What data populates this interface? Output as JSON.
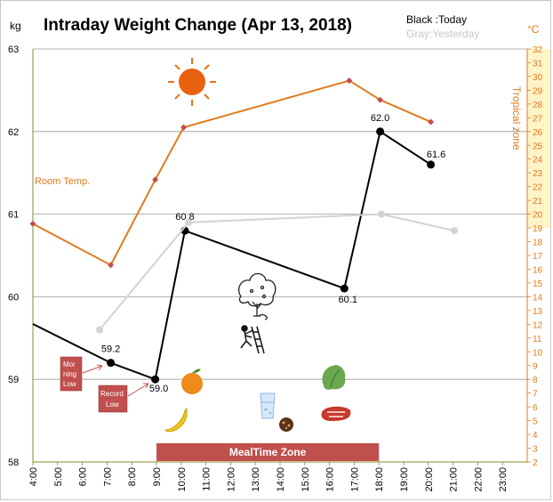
{
  "chart_data": {
    "type": "line",
    "title": "Intraday Weight Change (Apr 13, 2018)",
    "y_unit": "kg",
    "y2_unit": "°C",
    "legend": {
      "today": "Black :Today",
      "yesterday": "Gray:Yesterday"
    },
    "x_ticks": [
      "4:00",
      "5:00",
      "6:00",
      "7:00",
      "8:00",
      "9:00",
      "10:00",
      "11:00",
      "12:00",
      "13:00",
      "14:00",
      "15:00",
      "16:00",
      "17:00",
      "18:00",
      "19:00",
      "20:00",
      "21:00",
      "22:00",
      "23:00"
    ],
    "y_ticks": [
      "58",
      "59",
      "60",
      "61",
      "62",
      "63"
    ],
    "y2_ticks": [
      "2",
      "3",
      "4",
      "5",
      "6",
      "7",
      "8",
      "9",
      "10",
      "11",
      "12",
      "13",
      "14",
      "15",
      "16",
      "17",
      "18",
      "19",
      "20",
      "21",
      "22",
      "23",
      "24",
      "25",
      "26",
      "27",
      "28",
      "29",
      "30",
      "31",
      "32"
    ],
    "xlim": [
      4,
      24
    ],
    "ylim": [
      58,
      63
    ],
    "y2lim": [
      2,
      32
    ],
    "series": [
      {
        "key": "today",
        "color": "#000000",
        "points": [
          [
            4.0,
            59.67
          ],
          [
            7.15,
            59.2
          ],
          [
            8.95,
            59.0
          ],
          [
            10.15,
            60.8
          ],
          [
            16.6,
            60.1
          ],
          [
            18.05,
            62.0
          ],
          [
            20.1,
            61.6
          ]
        ],
        "labels": [
          null,
          "59.2",
          "59.0",
          "60.8",
          "60.1",
          "62.0",
          "61.6"
        ]
      },
      {
        "key": "yesterday",
        "color": "#d3d3d3",
        "points": [
          [
            6.7,
            59.6
          ],
          [
            10.3,
            60.9
          ],
          [
            18.1,
            61.0
          ],
          [
            21.05,
            60.8
          ]
        ]
      },
      {
        "key": "temp",
        "name": "Room Temp.",
        "color": "#e07b1f",
        "axis": "right",
        "points": [
          [
            4.0,
            19.3
          ],
          [
            7.15,
            16.3
          ],
          [
            8.95,
            22.5
          ],
          [
            10.1,
            26.3
          ],
          [
            16.8,
            29.7
          ],
          [
            18.05,
            28.3
          ],
          [
            20.1,
            26.7
          ]
        ]
      }
    ],
    "annotations": {
      "tropical_zone": "Tropical zone",
      "tropical_range": [
        19,
        32
      ],
      "meal_zone": "MealTime Zone",
      "meal_range": [
        9.0,
        18.0
      ],
      "morning_low": "Mor ning Low",
      "record_low": "Record Low"
    }
  },
  "colors": {
    "grid": "#9a9a9a",
    "axis_left": "#8a8a2a",
    "temp": "#e07b1f",
    "tropical_band": "#fff3c8",
    "meal_bar": "#c0504d",
    "label_box": "#c0504d"
  },
  "icons": [
    "sun-icon",
    "tree-icon",
    "climber-icon",
    "orange-icon",
    "banana-icon",
    "water-glass-icon",
    "cookie-icon",
    "steak-icon",
    "lettuce-icon"
  ]
}
